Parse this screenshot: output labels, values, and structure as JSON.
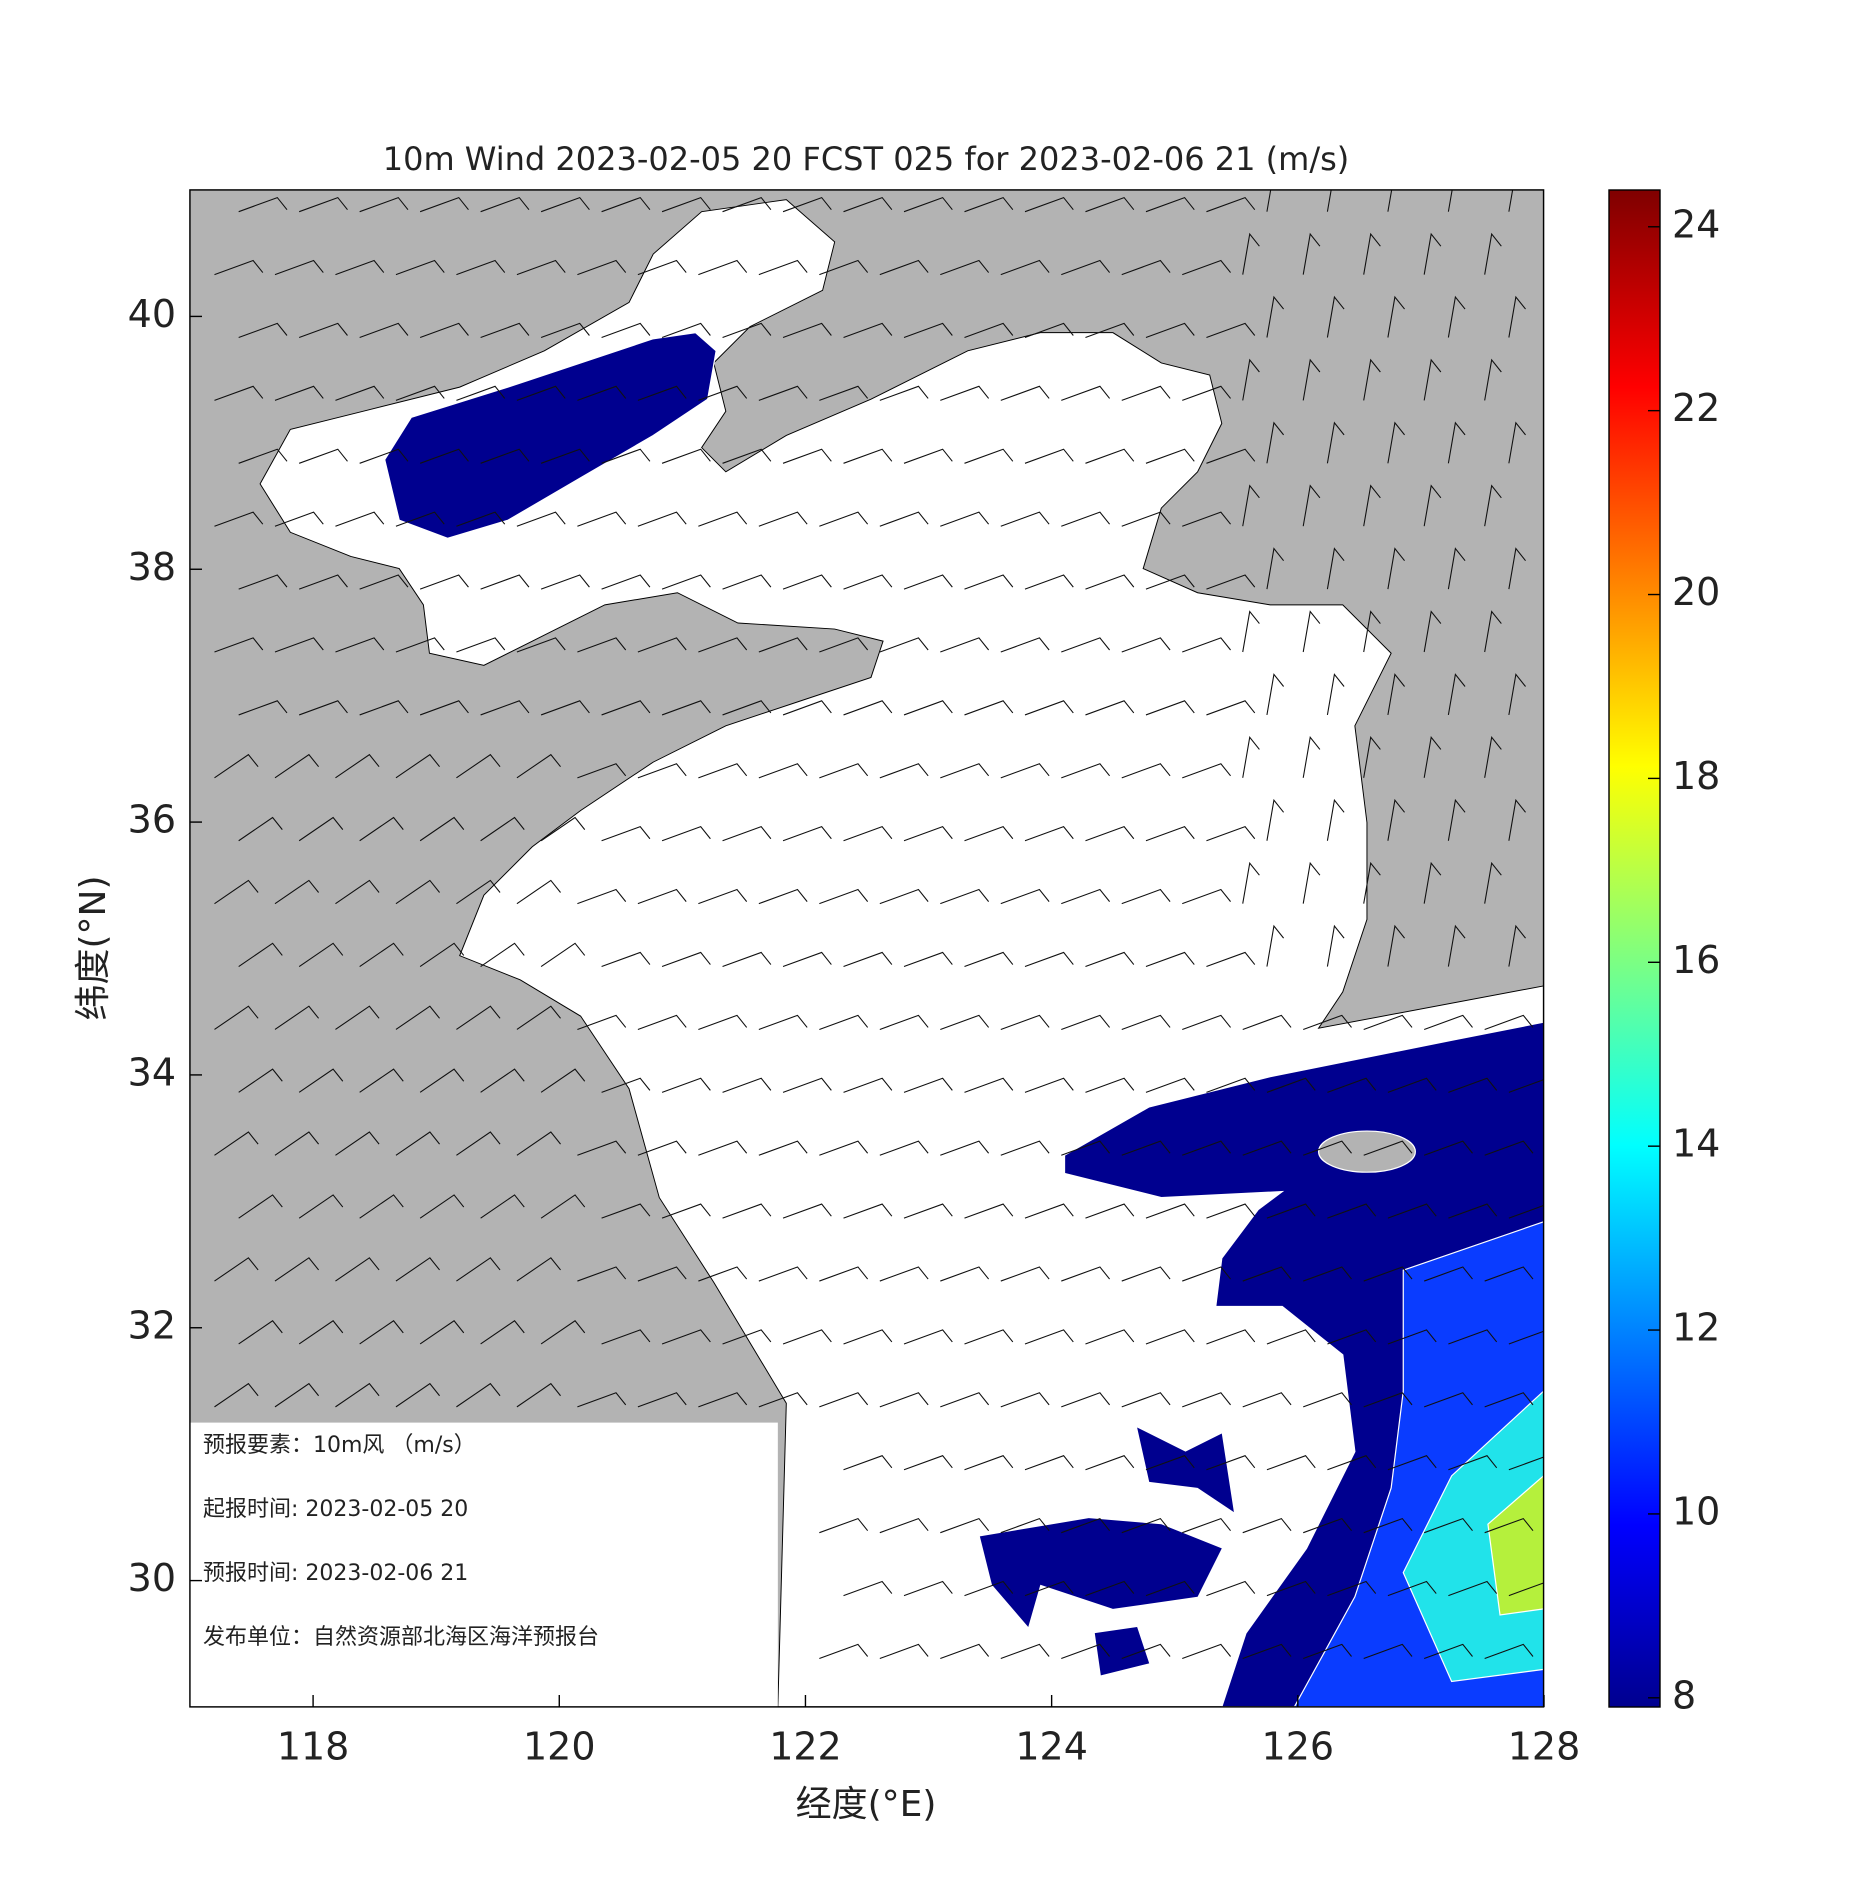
{
  "title": "10m Wind 2023-02-05 20 FCST 025 for 2023-02-06 21 (m/s)",
  "x_axis": {
    "label": "经度(°E)",
    "lim": [
      117,
      128
    ],
    "ticks": [
      118,
      120,
      122,
      124,
      126,
      128
    ]
  },
  "y_axis": {
    "label": "纬度(°N)",
    "lim": [
      29,
      41
    ],
    "ticks": [
      30,
      32,
      34,
      36,
      38,
      40
    ]
  },
  "colorbar": {
    "lim": [
      7.9,
      24.4
    ],
    "ticks": [
      8,
      10,
      12,
      14,
      16,
      18,
      20,
      22,
      24
    ]
  },
  "info": [
    "预报要素：10m风 （m/s）",
    "起报时间: 2023-02-05 20",
    "预报时间: 2023-02-06 21",
    "发布单位：自然资源部北海区海洋预报台"
  ]
}
